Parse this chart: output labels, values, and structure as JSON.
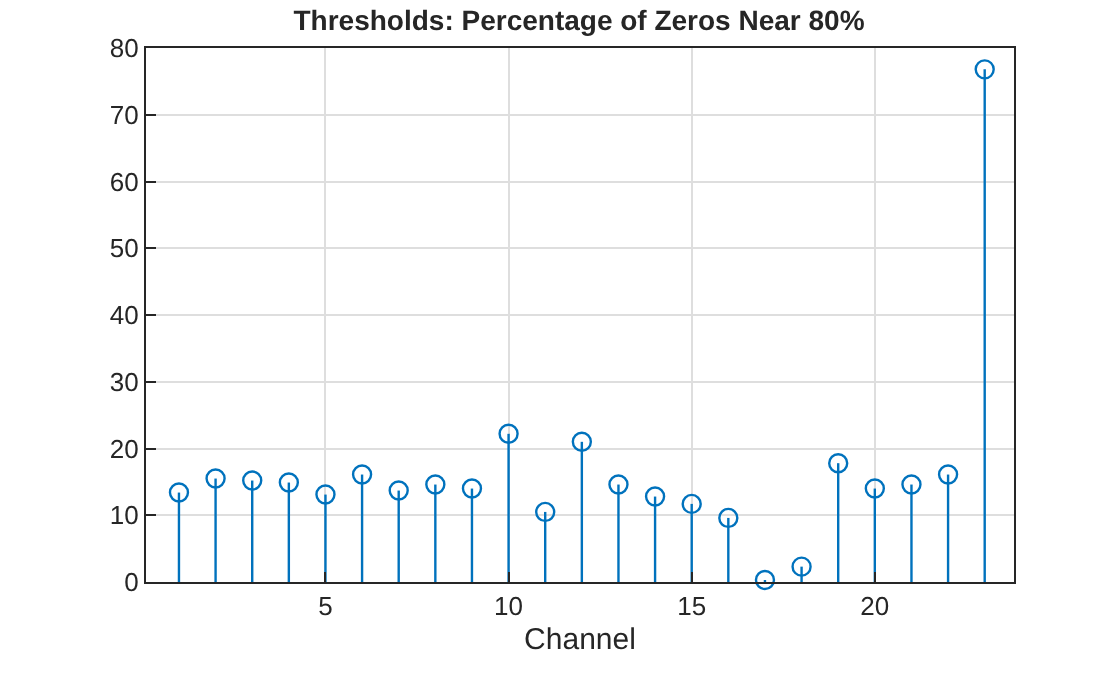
{
  "chart_data": {
    "type": "lollipop",
    "title": "Thresholds: Percentage of Zeros Near 80%",
    "xlabel": "Channel",
    "x": [
      1,
      2,
      3,
      4,
      5,
      6,
      7,
      8,
      9,
      10,
      11,
      12,
      13,
      14,
      15,
      16,
      17,
      18,
      19,
      20,
      21,
      22,
      23
    ],
    "series": [
      {
        "color": "#0072bd",
        "values": [
          13.4,
          15.5,
          15.2,
          14.9,
          13.1,
          16.1,
          13.7,
          14.6,
          14.0,
          22.2,
          10.5,
          21.0,
          14.6,
          12.8,
          11.7,
          9.6,
          0.3,
          2.3,
          17.8,
          14.0,
          14.6,
          16.1,
          76.8
        ]
      }
    ],
    "xlim": [
      0.1,
      23.8
    ],
    "xticks": [
      5,
      10,
      15,
      20
    ],
    "ylim": [
      0,
      80
    ],
    "yticks": [
      0,
      10,
      20,
      30,
      40,
      50,
      60,
      70,
      80
    ],
    "grid": true,
    "marker": "circle"
  }
}
